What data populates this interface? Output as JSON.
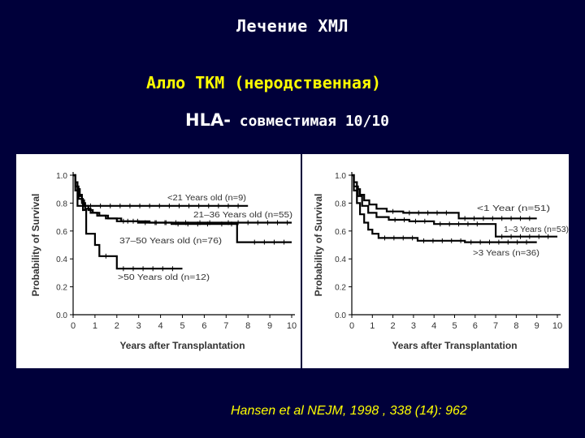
{
  "slide": {
    "title": "Лечение ХМЛ",
    "subtitle_1": "Алло ТКМ  (неродственная)",
    "subtitle_2a": "HLA-",
    "subtitle_2b": " совместимая 10/10",
    "citation": "Hansen et al NEJM, 1998 , 338 (14): 962",
    "colors": {
      "background": "#00003a",
      "title": "#ffffff",
      "subtitle": "#ffff00",
      "citation": "#ffff00",
      "plot_bg": "#ffffff",
      "lines": "#000000"
    }
  },
  "chart_data": [
    {
      "type": "line",
      "xlabel": "Years after Transplantation",
      "ylabel": "Probability of Survival",
      "xlim": [
        0,
        10
      ],
      "ylim": [
        0,
        1
      ],
      "xticks": [
        "0",
        "1",
        "2",
        "3",
        "4",
        "5",
        "6",
        "7",
        "8",
        "9",
        "10"
      ],
      "yticks": [
        "0.0",
        "0.2",
        "0.4",
        "0.6",
        "0.8",
        "1.0"
      ],
      "series": [
        {
          "name": "<21 Years old (n=9)",
          "x": [
            0,
            0.1,
            0.1,
            0.2,
            0.2,
            0.35,
            0.35,
            0.5,
            0.5,
            8
          ],
          "y": [
            1,
            1,
            0.89,
            0.89,
            0.78,
            0.78,
            0.78,
            0.78,
            0.78,
            0.78
          ]
        },
        {
          "name": "21–36 Years old (n=55)",
          "x": [
            0,
            0.1,
            0.1,
            0.2,
            0.2,
            0.3,
            0.3,
            0.4,
            0.4,
            0.5,
            0.5,
            0.7,
            0.7,
            0.9,
            0.9,
            1.2,
            1.2,
            1.6,
            1.6,
            2.2,
            2.2,
            3.5,
            3.5,
            5.5,
            5.5,
            6.8,
            6.8,
            10
          ],
          "y": [
            1,
            1,
            0.95,
            0.95,
            0.9,
            0.9,
            0.86,
            0.86,
            0.82,
            0.82,
            0.78,
            0.78,
            0.75,
            0.75,
            0.73,
            0.73,
            0.71,
            0.71,
            0.69,
            0.69,
            0.67,
            0.67,
            0.66,
            0.66,
            0.66,
            0.66,
            0.66,
            0.66
          ]
        },
        {
          "name": "37–50 Years old (n=76)",
          "x": [
            0,
            0.1,
            0.1,
            0.2,
            0.2,
            0.3,
            0.3,
            0.4,
            0.4,
            0.55,
            0.55,
            0.8,
            0.8,
            1.1,
            1.1,
            1.5,
            1.5,
            2.0,
            2.0,
            3.0,
            3.0,
            4.5,
            4.5,
            6.5,
            6.5,
            7.5,
            7.5,
            8.0,
            8.0,
            10
          ],
          "y": [
            1,
            1,
            0.95,
            0.95,
            0.9,
            0.9,
            0.85,
            0.85,
            0.8,
            0.8,
            0.76,
            0.76,
            0.73,
            0.73,
            0.71,
            0.71,
            0.69,
            0.69,
            0.67,
            0.67,
            0.66,
            0.66,
            0.65,
            0.65,
            0.65,
            0.65,
            0.52,
            0.52,
            0.52,
            0.52
          ]
        },
        {
          "name": ">50 Years old (n=12)",
          "x": [
            0,
            0.1,
            0.1,
            0.25,
            0.25,
            0.45,
            0.45,
            0.6,
            0.6,
            1.0,
            1.0,
            1.2,
            1.2,
            2.0,
            2.0,
            5
          ],
          "y": [
            1,
            1,
            0.92,
            0.92,
            0.83,
            0.83,
            0.75,
            0.75,
            0.58,
            0.58,
            0.5,
            0.5,
            0.42,
            0.42,
            0.33,
            0.33
          ]
        }
      ]
    },
    {
      "type": "line",
      "xlabel": "Years after Transplantation",
      "ylabel": "Probability of Survival",
      "xlim": [
        0,
        10
      ],
      "ylim": [
        0,
        1
      ],
      "xticks": [
        "0",
        "1",
        "2",
        "3",
        "4",
        "5",
        "6",
        "7",
        "8",
        "9",
        "10"
      ],
      "yticks": [
        "0.0",
        "0.2",
        "0.4",
        "0.6",
        "0.8",
        "1.0"
      ],
      "series": [
        {
          "name": "<1 Year (n=51)",
          "x": [
            0,
            0.1,
            0.1,
            0.25,
            0.25,
            0.4,
            0.4,
            0.6,
            0.6,
            0.85,
            0.85,
            1.2,
            1.2,
            1.7,
            1.7,
            2.5,
            2.5,
            5.0,
            5.0,
            5.2,
            5.2,
            7.0,
            7.0,
            9
          ],
          "y": [
            1,
            1,
            0.95,
            0.95,
            0.9,
            0.9,
            0.86,
            0.86,
            0.82,
            0.82,
            0.79,
            0.79,
            0.76,
            0.76,
            0.74,
            0.74,
            0.73,
            0.73,
            0.73,
            0.73,
            0.69,
            0.69,
            0.69,
            0.69
          ]
        },
        {
          "name": "1–3 Years (n=53)",
          "x": [
            0,
            0.1,
            0.1,
            0.3,
            0.3,
            0.5,
            0.5,
            0.8,
            0.8,
            1.2,
            1.2,
            1.8,
            1.8,
            2.8,
            2.8,
            4.0,
            4.0,
            6.5,
            6.5,
            7.0,
            7.0,
            10
          ],
          "y": [
            1,
            1,
            0.92,
            0.92,
            0.85,
            0.85,
            0.78,
            0.78,
            0.73,
            0.73,
            0.7,
            0.7,
            0.68,
            0.68,
            0.67,
            0.67,
            0.65,
            0.65,
            0.65,
            0.65,
            0.56,
            0.56
          ]
        },
        {
          "name": ">3 Years (n=36)",
          "x": [
            0,
            0.1,
            0.1,
            0.25,
            0.25,
            0.4,
            0.4,
            0.6,
            0.6,
            0.8,
            0.8,
            1.0,
            1.0,
            1.3,
            1.3,
            3.2,
            3.2,
            5.5,
            5.5,
            9
          ],
          "y": [
            1,
            1,
            0.89,
            0.89,
            0.8,
            0.8,
            0.72,
            0.72,
            0.66,
            0.66,
            0.61,
            0.61,
            0.58,
            0.58,
            0.55,
            0.55,
            0.53,
            0.53,
            0.52,
            0.52
          ]
        }
      ]
    }
  ]
}
